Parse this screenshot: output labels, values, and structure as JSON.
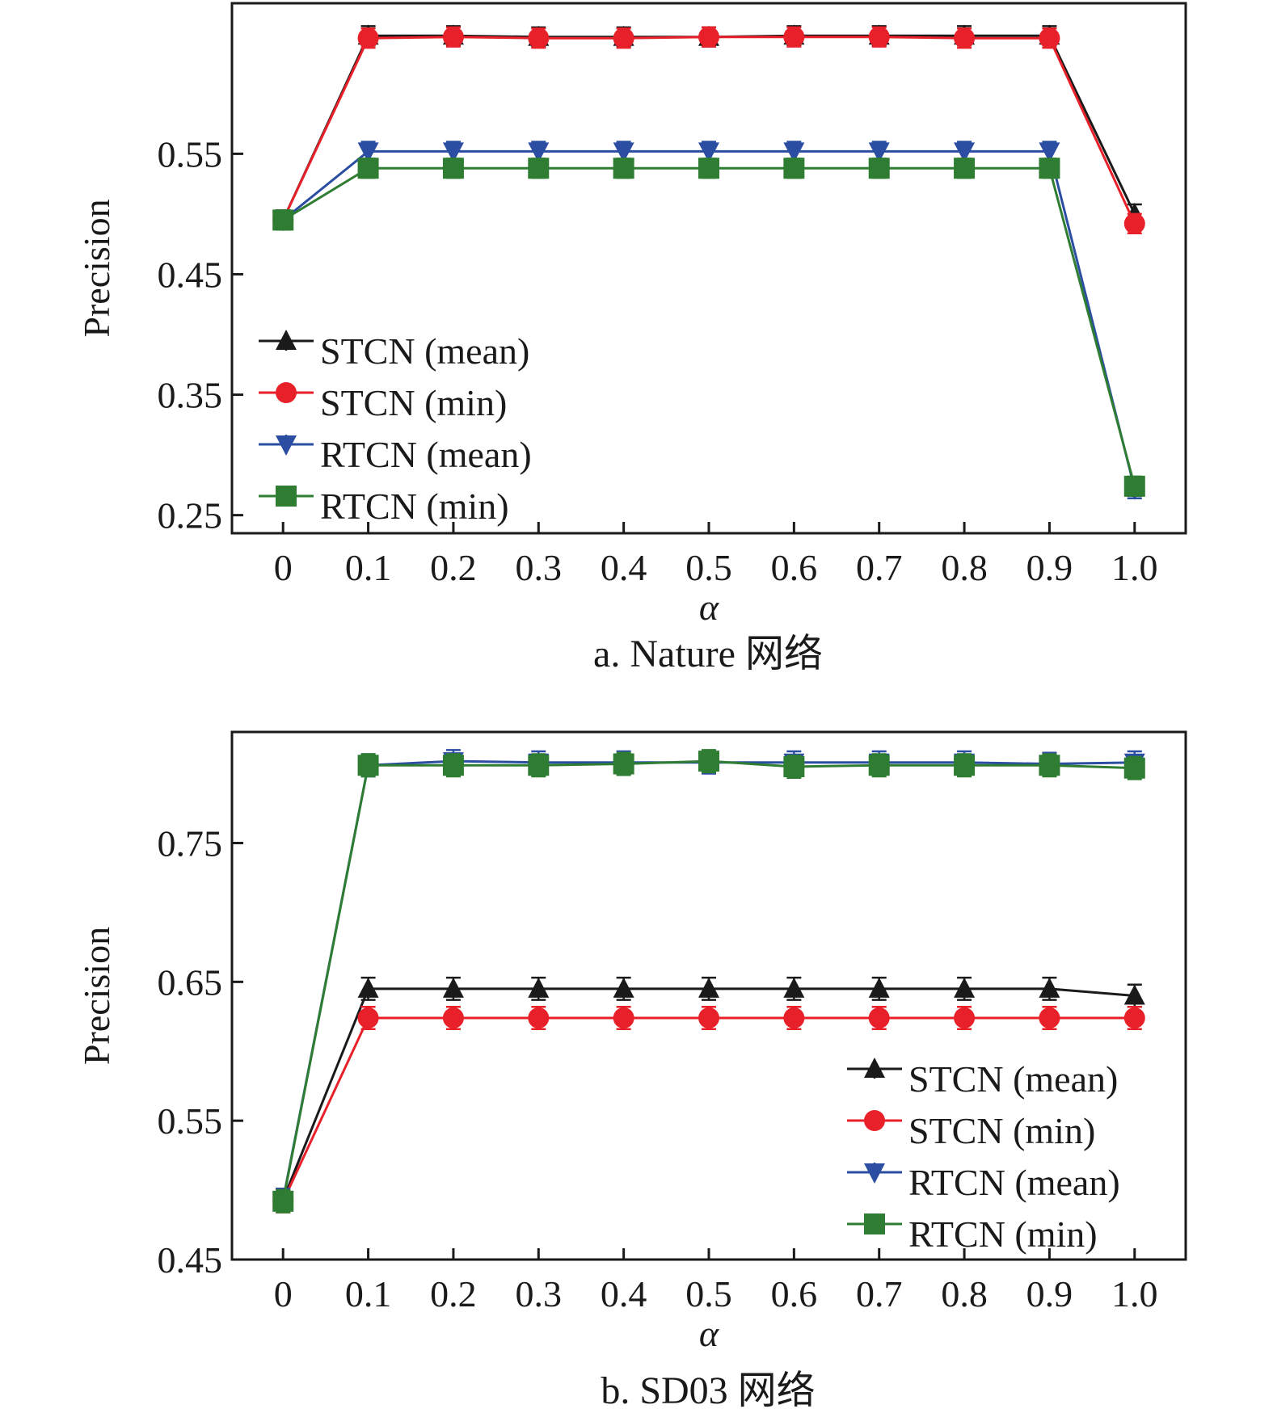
{
  "colors": {
    "STCN (mean)": "#1a1a1a",
    "STCN (min)": "#e8202a",
    "RTCN (mean)": "#2b4ea2",
    "RTCN (min)": "#2e7d32"
  },
  "markers": {
    "STCN (mean)": "triangle-up",
    "STCN (min)": "circle",
    "RTCN (mean)": "triangle-down",
    "RTCN (min)": "square"
  },
  "chart_data": [
    {
      "type": "line",
      "caption": "a. Nature 网络",
      "xlabel": "α",
      "ylabel": "Precision",
      "x": [
        "0",
        "0.1",
        "0.2",
        "0.3",
        "0.4",
        "0.5",
        "0.6",
        "0.7",
        "0.8",
        "0.9",
        "1.0"
      ],
      "ylim": [
        0.235,
        0.675
      ],
      "yticks": [
        "0.25",
        "0.35",
        "0.45",
        "0.55"
      ],
      "legend_position": "bottom-left",
      "error_bar": 0.008,
      "series": [
        {
          "name": "STCN (mean)",
          "values": [
            0.495,
            0.648,
            0.648,
            0.647,
            0.647,
            0.647,
            0.648,
            0.648,
            0.648,
            0.648,
            0.5
          ]
        },
        {
          "name": "STCN (min)",
          "values": [
            0.495,
            0.646,
            0.647,
            0.646,
            0.646,
            0.647,
            0.647,
            0.647,
            0.646,
            0.646,
            0.492
          ]
        },
        {
          "name": "RTCN (mean)",
          "values": [
            0.495,
            0.552,
            0.552,
            0.552,
            0.552,
            0.552,
            0.552,
            0.552,
            0.552,
            0.552,
            0.272
          ]
        },
        {
          "name": "RTCN (min)",
          "values": [
            0.495,
            0.538,
            0.538,
            0.538,
            0.538,
            0.538,
            0.538,
            0.538,
            0.538,
            0.538,
            0.274
          ]
        }
      ]
    },
    {
      "type": "line",
      "caption": "b. SD03 网络",
      "xlabel": "α",
      "ylabel": "Precision",
      "x": [
        "0",
        "0.1",
        "0.2",
        "0.3",
        "0.4",
        "0.5",
        "0.6",
        "0.7",
        "0.8",
        "0.9",
        "1.0"
      ],
      "ylim": [
        0.45,
        0.83
      ],
      "yticks": [
        "0.45",
        "0.55",
        "0.65",
        "0.75"
      ],
      "legend_position": "bottom-right",
      "error_bar": 0.008,
      "series": [
        {
          "name": "STCN (mean)",
          "values": [
            0.493,
            0.645,
            0.645,
            0.645,
            0.645,
            0.645,
            0.645,
            0.645,
            0.645,
            0.645,
            0.64
          ]
        },
        {
          "name": "STCN (min)",
          "values": [
            0.492,
            0.624,
            0.624,
            0.624,
            0.624,
            0.624,
            0.624,
            0.624,
            0.624,
            0.624,
            0.624
          ]
        },
        {
          "name": "RTCN (mean)",
          "values": [
            0.493,
            0.806,
            0.809,
            0.808,
            0.808,
            0.808,
            0.808,
            0.808,
            0.808,
            0.807,
            0.808
          ]
        },
        {
          "name": "RTCN (min)",
          "values": [
            0.492,
            0.806,
            0.806,
            0.806,
            0.807,
            0.809,
            0.805,
            0.806,
            0.806,
            0.806,
            0.804
          ]
        }
      ]
    }
  ]
}
